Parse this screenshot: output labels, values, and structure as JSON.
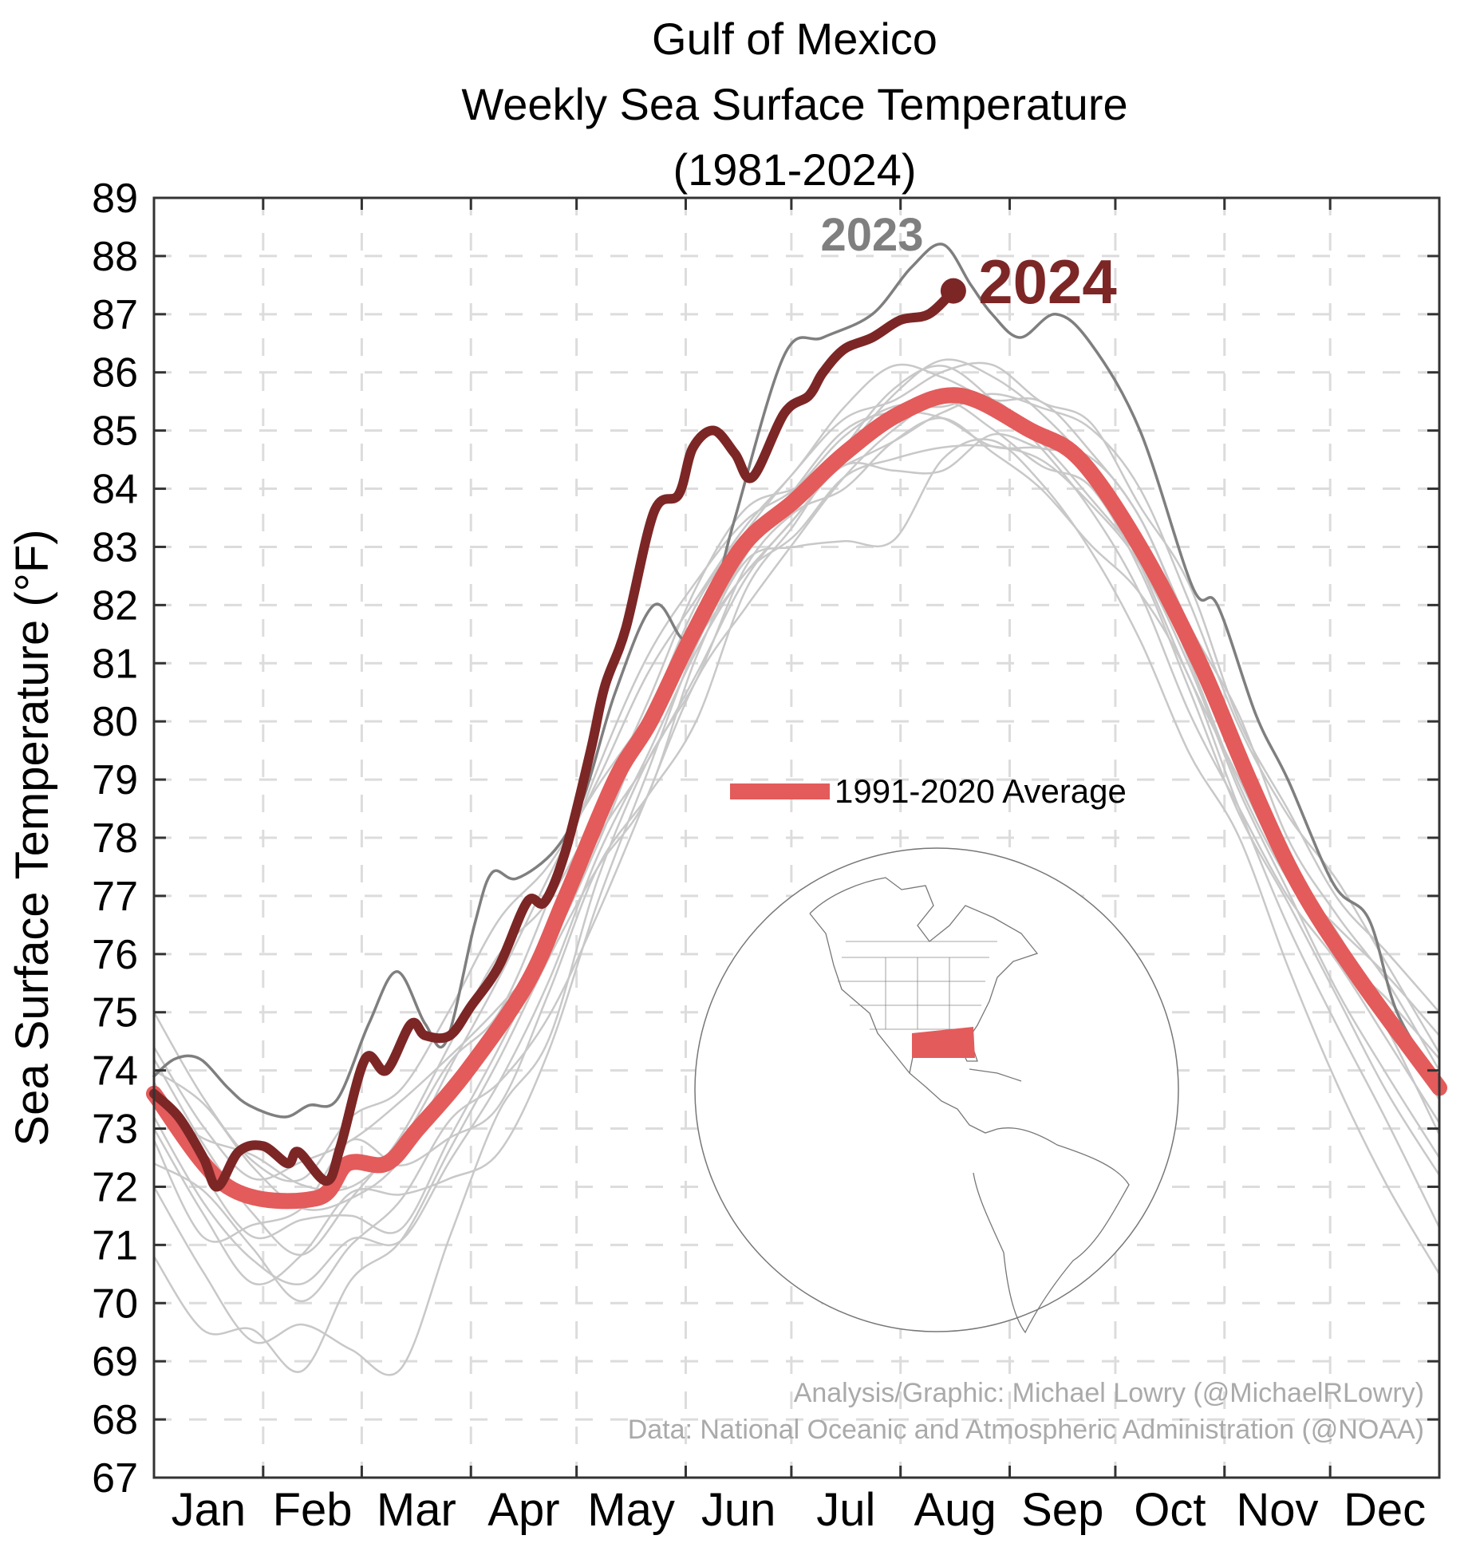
{
  "chart_data": {
    "type": "line",
    "title": [
      "Gulf of Mexico",
      "Weekly Sea Surface Temperature",
      "(1981-2024)"
    ],
    "xlabel": "",
    "ylabel": "Sea Surface Temperature (°F)",
    "xlim": [
      0,
      365
    ],
    "ylim": [
      67,
      89
    ],
    "yticks": [
      67,
      68,
      69,
      70,
      71,
      72,
      73,
      74,
      75,
      76,
      77,
      78,
      79,
      80,
      81,
      82,
      83,
      84,
      85,
      86,
      87,
      88,
      89
    ],
    "month_labels": [
      "Jan",
      "Feb",
      "Mar",
      "Apr",
      "May",
      "Jun",
      "Jul",
      "Aug",
      "Sep",
      "Oct",
      "Nov",
      "Dec"
    ],
    "month_starts": [
      0,
      31,
      59,
      90,
      120,
      151,
      181,
      212,
      243,
      273,
      304,
      334,
      365
    ],
    "grid": true,
    "legend": {
      "label": "1991-2020 Average",
      "placement": "center-right"
    },
    "series": [
      {
        "name": "1991-2020 Average",
        "color": "#e35b5b",
        "x": [
          0,
          21,
          46,
          55,
          66,
          75,
          89,
          106,
          117,
          131,
          141,
          153,
          167,
          182,
          196,
          212,
          229,
          249,
          263,
          280,
          297,
          311,
          325,
          342,
          365
        ],
        "y": [
          73.6,
          72.0,
          71.8,
          72.4,
          72.4,
          73.0,
          74.0,
          75.5,
          77.0,
          79.0,
          80.0,
          81.5,
          83.0,
          83.8,
          84.6,
          85.3,
          85.6,
          85.0,
          84.5,
          83.0,
          81.0,
          79.0,
          77.2,
          75.6,
          73.7
        ]
      },
      {
        "name": "2023",
        "color": "#7f7f7f",
        "x": [
          0,
          6,
          13,
          21,
          27,
          37,
          44,
          52,
          61,
          69,
          77,
          83,
          91,
          96,
          103,
          114,
          122,
          131,
          142,
          151,
          159,
          165,
          179,
          190,
          204,
          215,
          224,
          232,
          238,
          246,
          256,
          266,
          280,
          295,
          302,
          313,
          322,
          335,
          345,
          353,
          365
        ],
        "y": [
          73.9,
          74.2,
          74.2,
          73.7,
          73.4,
          73.2,
          73.4,
          73.5,
          74.8,
          75.7,
          74.8,
          74.5,
          76.5,
          77.4,
          77.3,
          77.8,
          78.7,
          80.5,
          82.0,
          81.4,
          82.2,
          83.5,
          86.3,
          86.6,
          87.0,
          87.8,
          88.2,
          87.5,
          87.0,
          86.6,
          87.0,
          86.5,
          85.0,
          82.3,
          82.0,
          80.1,
          79.0,
          77.2,
          76.6,
          75.0,
          73.8
        ]
      },
      {
        "name": "2024",
        "color": "#7d2626",
        "x": [
          0,
          7,
          14,
          18,
          24,
          31,
          38,
          41,
          49,
          53,
          60,
          66,
          73,
          77,
          84,
          90,
          98,
          106,
          111,
          117,
          124,
          128,
          134,
          142,
          149,
          153,
          159,
          165,
          170,
          179,
          186,
          190,
          196,
          204,
          212,
          220,
          227
        ],
        "y": [
          73.6,
          73.2,
          72.5,
          72.0,
          72.6,
          72.7,
          72.4,
          72.6,
          72.1,
          72.7,
          74.2,
          74.0,
          74.8,
          74.6,
          74.6,
          75.1,
          75.8,
          76.9,
          76.9,
          77.8,
          79.5,
          80.6,
          81.6,
          83.6,
          83.9,
          84.7,
          85.0,
          84.6,
          84.2,
          85.3,
          85.6,
          86.0,
          86.4,
          86.6,
          86.9,
          87.0,
          87.4
        ]
      }
    ],
    "other_years_color": "#c8c8c8",
    "other_years_days": [
      0,
      14,
      28,
      42,
      56,
      70,
      84,
      98,
      112,
      126,
      140,
      154,
      168,
      182,
      196,
      210,
      224,
      238,
      252,
      266,
      280,
      294,
      308,
      322,
      336,
      350,
      365
    ],
    "other_years_anomalies": [
      [
        -0.4,
        -0.8,
        -1.2,
        -1.5,
        -1.3,
        -1.6,
        -1.2,
        -1.0,
        -0.8,
        -0.6,
        -0.5,
        -0.4,
        -0.5,
        -0.6,
        -0.4,
        -0.7,
        -0.8,
        -0.6,
        -0.4,
        -0.5,
        -0.3,
        -0.4,
        -0.6,
        -0.5,
        -0.8,
        -1.0,
        -1.2
      ],
      [
        0.8,
        0.5,
        0.2,
        0.6,
        0.4,
        0.8,
        0.6,
        0.3,
        -0.2,
        -0.4,
        0.1,
        0.4,
        0.2,
        0.5,
        0.6,
        0.3,
        0.5,
        0.8,
        0.6,
        0.9,
        0.7,
        1.0,
        0.6,
        0.9,
        0.8,
        1.1,
        1.3
      ],
      [
        -1.6,
        -2.0,
        -2.6,
        -2.2,
        -3.2,
        -3.8,
        -2.5,
        -1.5,
        -1.8,
        -1.0,
        -0.6,
        -0.9,
        -0.4,
        -0.2,
        -0.6,
        -0.4,
        -0.3,
        -0.7,
        -0.9,
        -1.2,
        -0.8,
        -0.6,
        -0.9,
        -1.1,
        -1.4,
        -1.8,
        -2.4
      ],
      [
        0.2,
        -0.3,
        -0.8,
        -0.4,
        -0.9,
        -1.4,
        -0.8,
        -0.4,
        -0.2,
        -0.3,
        -0.6,
        -0.8,
        -0.6,
        -0.3,
        -0.2,
        -0.9,
        -1.2,
        -0.4,
        -0.2,
        0.3,
        0.5,
        0.2,
        0.1,
        0.0,
        0.2,
        0.0,
        -0.2
      ],
      [
        1.4,
        1.0,
        0.5,
        0.3,
        0.8,
        1.0,
        1.4,
        1.8,
        1.2,
        0.6,
        0.2,
        -0.2,
        -0.5,
        -0.3,
        0.0,
        0.4,
        0.7,
        0.6,
        0.4,
        0.1,
        -0.3,
        -0.6,
        -0.4,
        -0.2,
        0.3,
        0.7,
        0.9
      ],
      [
        -0.8,
        -1.4,
        -0.6,
        -0.2,
        0.4,
        -0.3,
        -0.8,
        -1.4,
        -1.0,
        -0.8,
        -1.2,
        -1.6,
        -0.8,
        -0.4,
        0.1,
        0.5,
        0.6,
        0.2,
        -0.2,
        -0.6,
        -0.8,
        -1.2,
        -0.9,
        -0.6,
        -0.3,
        -0.4,
        -0.6
      ],
      [
        0.4,
        0.9,
        0.4,
        -0.2,
        -0.6,
        -0.2,
        0.4,
        0.8,
        1.0,
        0.7,
        0.9,
        0.5,
        0.3,
        0.5,
        0.8,
        0.9,
        0.4,
        0.2,
        0.6,
        0.4,
        0.5,
        0.3,
        0.7,
        0.4,
        0.5,
        0.6,
        0.3
      ],
      [
        -2.8,
        -3.0,
        -2.4,
        -3.0,
        -2.0,
        -1.6,
        -1.0,
        -0.6,
        -0.4,
        -0.8,
        -1.2,
        -0.5,
        -0.3,
        -0.8,
        -1.5,
        -2.1,
        -1.0,
        -0.5,
        -0.8,
        -1.3,
        -1.6,
        -1.9,
        -1.4,
        -1.8,
        -2.4,
        -2.9,
        -3.2
      ],
      [
        -0.2,
        0.3,
        0.6,
        0.2,
        -0.4,
        0.1,
        0.5,
        0.2,
        0.6,
        0.9,
        1.2,
        0.8,
        0.4,
        0.2,
        0.3,
        0.2,
        -0.1,
        0.3,
        0.5,
        0.8,
        1.0,
        0.7,
        0.5,
        0.8,
        1.1,
        0.9,
        0.6
      ],
      [
        -1.2,
        -0.6,
        -1.0,
        -1.8,
        -1.4,
        -0.9,
        -0.5,
        -1.0,
        -1.4,
        -1.6,
        -1.2,
        -0.9,
        -1.1,
        -0.7,
        -0.4,
        -0.2,
        0.0,
        -0.3,
        -0.5,
        -0.2,
        -0.4,
        -0.8,
        -1.0,
        -0.7,
        -0.9,
        -1.3,
        -1.5
      ],
      [
        0.6,
        0.2,
        -0.4,
        -1.0,
        -0.6,
        0.2,
        0.8,
        1.2,
        0.6,
        0.2,
        0.4,
        0.7,
        0.6,
        0.2,
        -0.2,
        -0.4,
        -0.2,
        0.2,
        -0.1,
        -0.4,
        -0.2,
        0.1,
        0.3,
        0.1,
        -0.1,
        0.3,
        0.5
      ],
      [
        -0.6,
        -1.0,
        -1.6,
        -1.0,
        -0.5,
        -0.8,
        -1.5,
        -2.2,
        -2.0,
        -1.4,
        -0.8,
        -0.3,
        -0.2,
        0.2,
        0.4,
        0.1,
        -0.3,
        -0.6,
        -0.2,
        0.2,
        0.0,
        -0.3,
        -0.5,
        -0.3,
        0.0,
        -0.2,
        -0.8
      ]
    ],
    "annotations": [
      {
        "text": "2023",
        "color": "#7f7f7f"
      },
      {
        "text": "2024",
        "color": "#7d2626"
      }
    ],
    "credits": [
      "Analysis/Graphic: Michael Lowry (@MichaelRLowry)",
      "Data: National Oceanic and Atmospheric Administration (@NOAA)"
    ],
    "inset": {
      "description_label": "globe-map",
      "highlight_color": "#e35b5b"
    }
  }
}
